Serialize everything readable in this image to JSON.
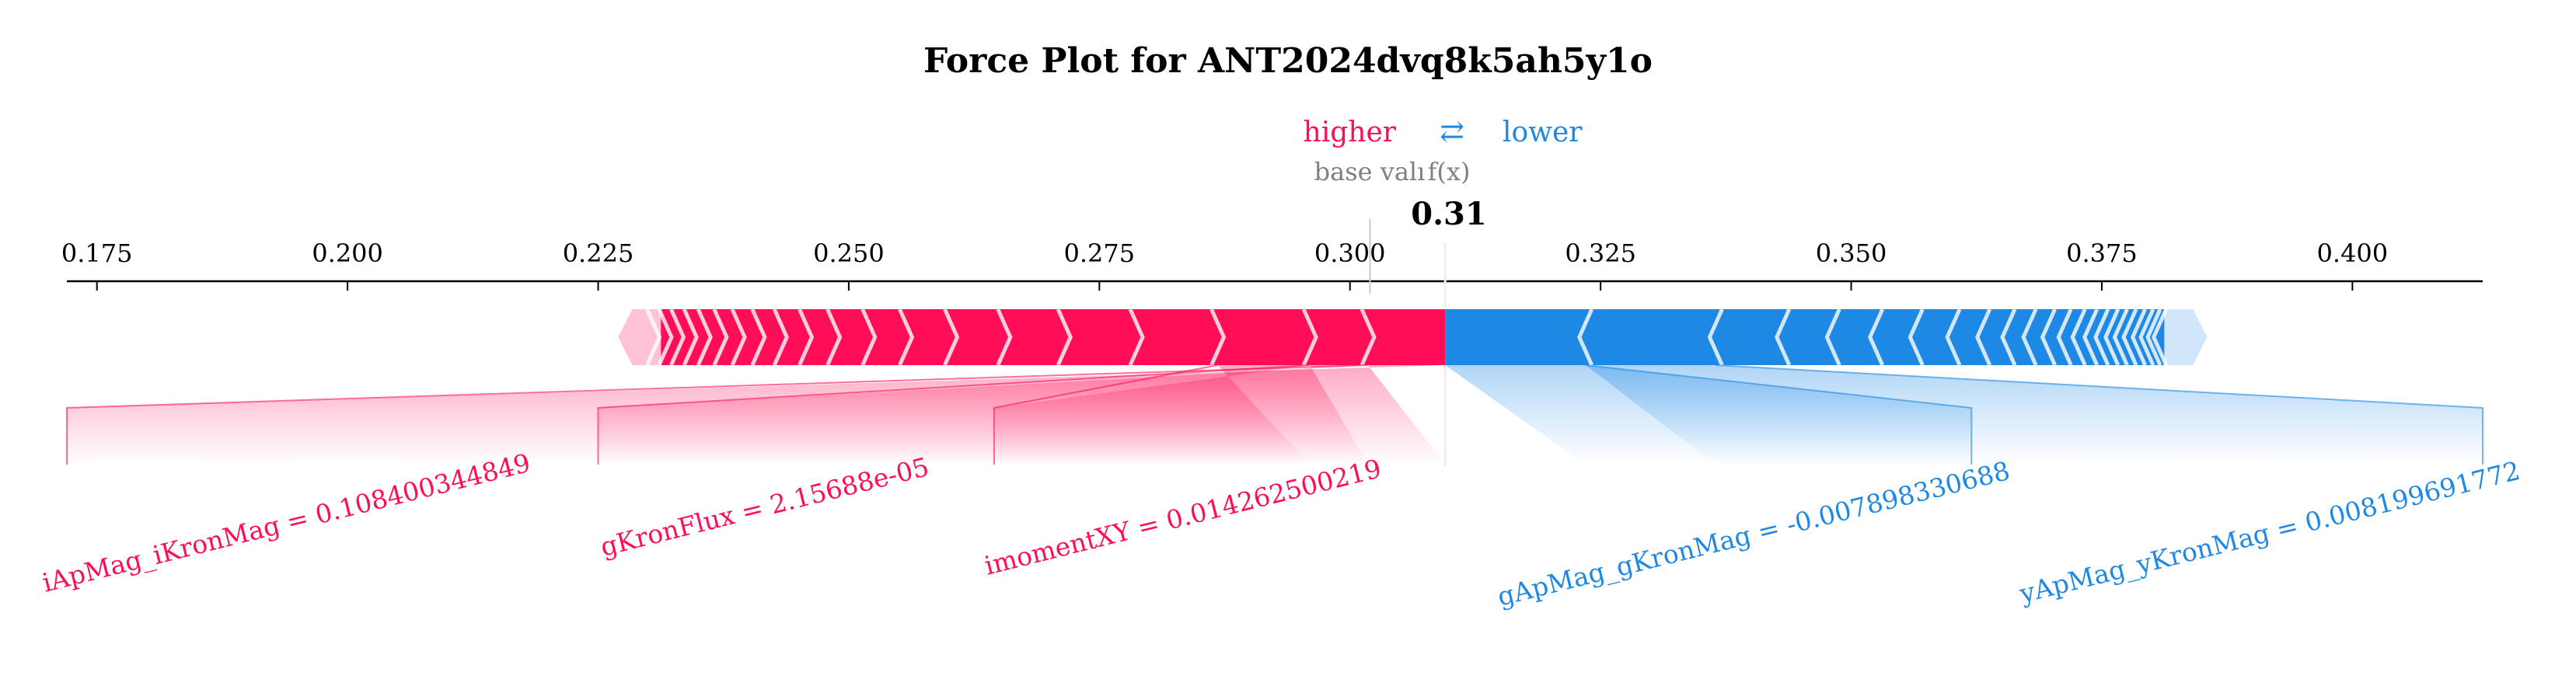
{
  "chart_data": {
    "type": "force",
    "title": "Force Plot for ANT2024dvq8k5ah5y1o",
    "legend": {
      "higher": "higher",
      "lower": "lower",
      "arrows": "⇄"
    },
    "base_value_label": "base valı",
    "output_label": "f(x)",
    "output_value_text": "0.31",
    "base_value": 0.302,
    "output_value": 0.3095,
    "xlim": [
      0.172,
      0.413
    ],
    "ticks": [
      0.175,
      0.2,
      0.225,
      0.25,
      0.275,
      0.3,
      0.325,
      0.35,
      0.375,
      0.4
    ],
    "tick_labels": [
      "0.175",
      "0.200",
      "0.225",
      "0.250",
      "0.275",
      "0.300",
      "0.325",
      "0.350",
      "0.375",
      "0.400"
    ],
    "positive_range": [
      0.227,
      0.3095
    ],
    "negative_range": [
      0.3095,
      0.3855
    ],
    "positive_chevrons": [
      0.2305,
      0.2317,
      0.2329,
      0.2342,
      0.2356,
      0.2372,
      0.239,
      0.241,
      0.2432,
      0.2457,
      0.2485,
      0.252,
      0.2557,
      0.2602,
      0.2655,
      0.2715,
      0.2787,
      0.2868,
      0.296,
      0.3018
    ],
    "negative_chevrons": [
      0.3235,
      0.3365,
      0.3432,
      0.3482,
      0.3525,
      0.3565,
      0.3602,
      0.3632,
      0.3657,
      0.3678,
      0.3697,
      0.3713,
      0.3727,
      0.3739,
      0.375,
      0.376,
      0.3769,
      0.3778,
      0.3787,
      0.3795,
      0.3802,
      0.3808
    ],
    "colors": {
      "positive": "#ff0d57",
      "negative": "#1e88e5",
      "positive_light": "#ffc3d5",
      "negative_light": "#d1e6fa",
      "base_text": "#808080"
    },
    "features": [
      {
        "label": "iApMag_iKronMag = 0.108400344849",
        "direction": "positive",
        "seg_start": 0.3018,
        "seg_end": 0.3095,
        "label_x": 0.172
      },
      {
        "label": "gKronFlux = 2.15688e-05",
        "direction": "positive",
        "seg_start": 0.296,
        "seg_end": 0.3018,
        "label_x": 0.225
      },
      {
        "label": "imomentXY = 0.014262500219",
        "direction": "positive",
        "seg_start": 0.2868,
        "seg_end": 0.296,
        "label_x": 0.2645
      },
      {
        "label": "gApMag_gKronMag = -0.007898330688",
        "direction": "negative",
        "seg_start": 0.3095,
        "seg_end": 0.3235,
        "label_x": 0.362
      },
      {
        "label": "yApMag_yKronMag = 0.008199691772",
        "direction": "negative",
        "seg_start": 0.3235,
        "seg_end": 0.3365,
        "label_x": 0.413
      }
    ]
  }
}
